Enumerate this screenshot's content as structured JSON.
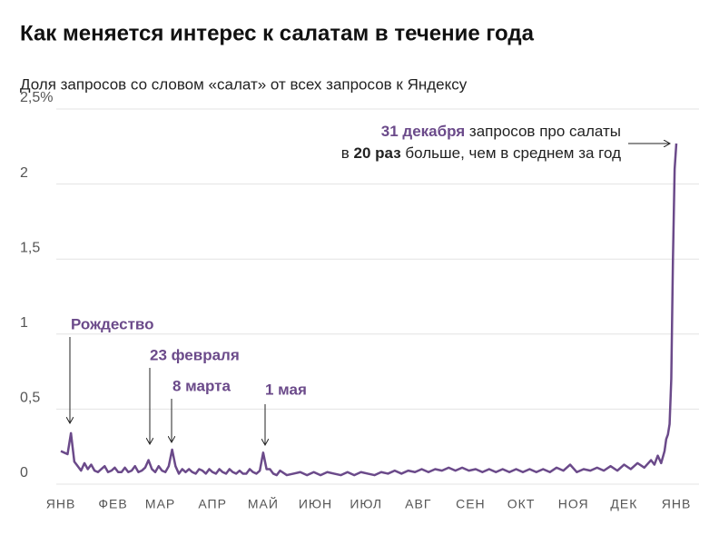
{
  "chart_data": {
    "type": "line",
    "title": "Как меняется интерес к салатам в течение года",
    "subtitle": "Доля запросов со словом «салат» от всех запросов к Яндексу",
    "xlim": [
      0,
      365
    ],
    "xticks": [
      {
        "value": 0,
        "label": "ЯНВ"
      },
      {
        "value": 31,
        "label": "ФЕВ"
      },
      {
        "value": 59,
        "label": "МАР"
      },
      {
        "value": 90,
        "label": "АПР"
      },
      {
        "value": 120,
        "label": "МАЙ"
      },
      {
        "value": 151,
        "label": "ИЮН"
      },
      {
        "value": 181,
        "label": "ИЮЛ"
      },
      {
        "value": 212,
        "label": "АВГ"
      },
      {
        "value": 243,
        "label": "СЕН"
      },
      {
        "value": 273,
        "label": "ОКТ"
      },
      {
        "value": 304,
        "label": "НОЯ"
      },
      {
        "value": 334,
        "label": "ДЕК"
      },
      {
        "value": 365,
        "label": "ЯНВ"
      }
    ],
    "ylim": [
      0,
      2.5
    ],
    "yticks": [
      0,
      {
        "value": 0.5,
        "label": "0,5"
      },
      1,
      {
        "value": 1.5,
        "label": "1,5"
      },
      2,
      {
        "value": 2.5,
        "label": "2,5%"
      }
    ],
    "grid": true,
    "series": [
      {
        "color": "#6b4a8a",
        "x": [
          0,
          2,
          4,
          6,
          8,
          10,
          12,
          14,
          16,
          18,
          20,
          22,
          24,
          26,
          28,
          30,
          32,
          34,
          36,
          38,
          40,
          42,
          44,
          46,
          48,
          50,
          52,
          54,
          56,
          58,
          60,
          62,
          64,
          66,
          68,
          70,
          72,
          74,
          76,
          78,
          80,
          82,
          84,
          86,
          88,
          90,
          92,
          94,
          96,
          98,
          100,
          102,
          104,
          106,
          108,
          110,
          112,
          114,
          116,
          118,
          120,
          122,
          124,
          126,
          128,
          130,
          134,
          138,
          142,
          146,
          150,
          154,
          158,
          162,
          166,
          170,
          174,
          178,
          182,
          186,
          190,
          194,
          198,
          202,
          206,
          210,
          214,
          218,
          222,
          226,
          230,
          234,
          238,
          242,
          246,
          250,
          254,
          258,
          262,
          266,
          270,
          274,
          278,
          282,
          286,
          290,
          294,
          298,
          302,
          306,
          310,
          314,
          318,
          322,
          326,
          330,
          334,
          338,
          342,
          346,
          350,
          352,
          354,
          356,
          358,
          359,
          360,
          361,
          362,
          363,
          364,
          365
        ],
        "values": [
          0.22,
          0.21,
          0.2,
          0.34,
          0.15,
          0.12,
          0.09,
          0.14,
          0.1,
          0.13,
          0.09,
          0.08,
          0.1,
          0.12,
          0.08,
          0.09,
          0.11,
          0.08,
          0.08,
          0.11,
          0.08,
          0.09,
          0.12,
          0.08,
          0.09,
          0.11,
          0.16,
          0.1,
          0.08,
          0.12,
          0.09,
          0.08,
          0.12,
          0.23,
          0.12,
          0.07,
          0.1,
          0.08,
          0.1,
          0.08,
          0.07,
          0.1,
          0.09,
          0.07,
          0.1,
          0.08,
          0.07,
          0.1,
          0.08,
          0.07,
          0.1,
          0.08,
          0.07,
          0.09,
          0.07,
          0.07,
          0.1,
          0.08,
          0.07,
          0.09,
          0.21,
          0.1,
          0.1,
          0.07,
          0.06,
          0.09,
          0.06,
          0.07,
          0.08,
          0.06,
          0.08,
          0.06,
          0.08,
          0.07,
          0.06,
          0.08,
          0.06,
          0.08,
          0.07,
          0.06,
          0.08,
          0.07,
          0.09,
          0.07,
          0.09,
          0.08,
          0.1,
          0.08,
          0.1,
          0.09,
          0.11,
          0.09,
          0.11,
          0.09,
          0.1,
          0.08,
          0.1,
          0.08,
          0.1,
          0.08,
          0.1,
          0.08,
          0.1,
          0.08,
          0.1,
          0.08,
          0.11,
          0.09,
          0.13,
          0.08,
          0.1,
          0.09,
          0.11,
          0.09,
          0.12,
          0.09,
          0.13,
          0.1,
          0.14,
          0.11,
          0.16,
          0.13,
          0.19,
          0.14,
          0.22,
          0.3,
          0.33,
          0.4,
          0.7,
          1.5,
          2.1,
          2.27
        ]
      }
    ],
    "annotations": [
      {
        "text": "Рождество"
      },
      {
        "text": "23 февраля"
      },
      {
        "text": "8 марта"
      },
      {
        "text": "1 мая"
      }
    ],
    "note": {
      "line1": [
        "31 декабря",
        " запросов про салаты"
      ],
      "line2": [
        "в ",
        "20 раз",
        " больше, чем в среднем за год"
      ]
    }
  }
}
